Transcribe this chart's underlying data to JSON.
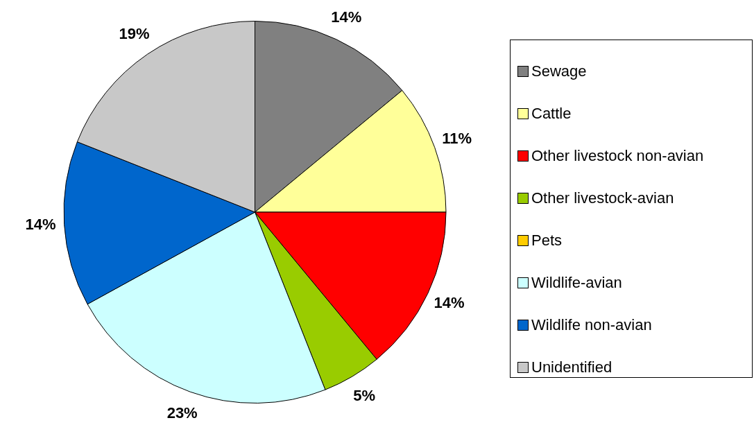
{
  "chart_data": {
    "type": "pie",
    "categories": [
      "Sewage",
      "Cattle",
      "Other livestock non-avian",
      "Other livestock-avian",
      "Pets",
      "Wildlife-avian",
      "Wildlife non-avian",
      "Unidentified"
    ],
    "values": [
      14,
      11,
      14,
      5,
      0,
      23,
      14,
      19
    ],
    "colors": [
      "#808080",
      "#ffff99",
      "#ff0000",
      "#99cc00",
      "#ffcc00",
      "#ccffff",
      "#0066cc",
      "#c8c8c8"
    ],
    "value_labels": [
      "14%",
      "11%",
      "14%",
      "5%",
      null,
      "23%",
      "14%",
      "19%"
    ],
    "legend": "right"
  }
}
